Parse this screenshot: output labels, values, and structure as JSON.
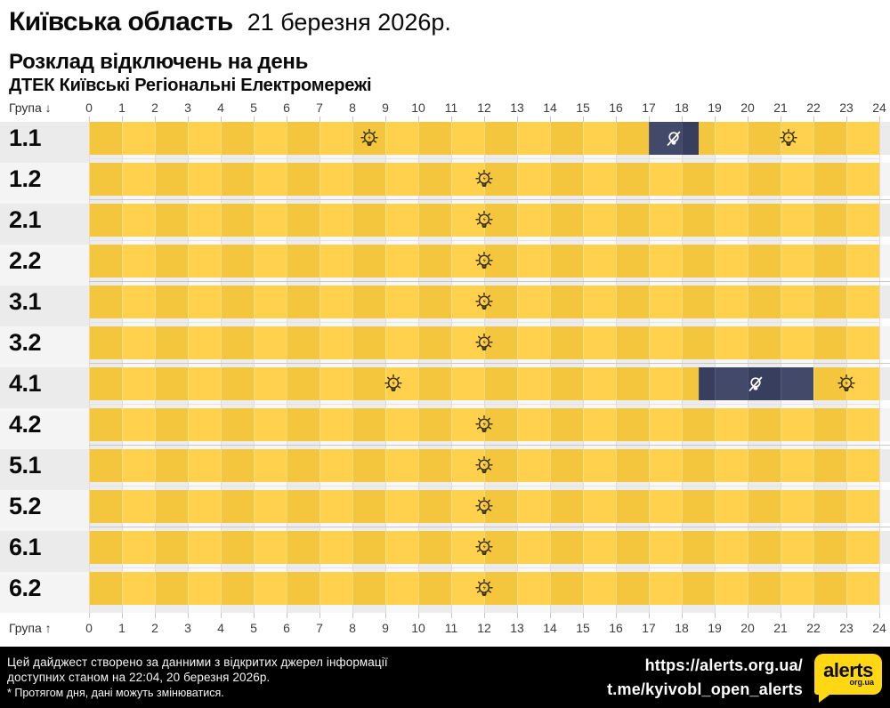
{
  "header": {
    "title": "Київська область",
    "date": "21 березня 2026р.",
    "subtitle": "Розклад відключень на день",
    "provider": "ДТЕК Київські Регіональні Електромережі"
  },
  "chart": {
    "axis_label_top": "Група ↓",
    "axis_label_bottom": "Група ↑"
  },
  "chart_data": {
    "type": "gantt",
    "description": "Daily electricity outage schedule per group; yellow = power on (bulb marker at center of on-period), dark navy = scheduled outage (crossed-out bulb marker)",
    "x_axis": {
      "label": "hour of day",
      "min": 0,
      "max": 24,
      "tick_step": 1
    },
    "groups": [
      {
        "label": "1.1",
        "outages": [
          {
            "start": 17,
            "end": 18.5
          }
        ],
        "on_markers": [
          8.5,
          21.25
        ]
      },
      {
        "label": "1.2",
        "outages": [],
        "on_markers": [
          12
        ]
      },
      {
        "label": "2.1",
        "outages": [],
        "on_markers": [
          12
        ]
      },
      {
        "label": "2.2",
        "outages": [],
        "on_markers": [
          12
        ]
      },
      {
        "label": "3.1",
        "outages": [],
        "on_markers": [
          12
        ]
      },
      {
        "label": "3.2",
        "outages": [],
        "on_markers": [
          12
        ]
      },
      {
        "label": "4.1",
        "outages": [
          {
            "start": 18.5,
            "end": 22
          }
        ],
        "on_markers": [
          9.25,
          23
        ]
      },
      {
        "label": "4.2",
        "outages": [],
        "on_markers": [
          12
        ]
      },
      {
        "label": "5.1",
        "outages": [],
        "on_markers": [
          12
        ]
      },
      {
        "label": "5.2",
        "outages": [],
        "on_markers": [
          12
        ]
      },
      {
        "label": "6.1",
        "outages": [],
        "on_markers": [
          12
        ]
      },
      {
        "label": "6.2",
        "outages": [],
        "on_markers": [
          12
        ]
      }
    ],
    "colors": {
      "power_on_even_hour": "#F3C63D",
      "power_on_odd_hour": "#FFD14D",
      "outage_even_hour": "#383E5E",
      "outage_odd_hour": "#424969",
      "logo_yellow": "#FFD713"
    },
    "legend_position": "none",
    "grid": true
  },
  "footer": {
    "line1": "Цей дайджест створено за данними з відкритих джерел інформації",
    "line2": "доступних станом на 22:04, 20 березня 2026р.",
    "line3": "* Протягом дня, дані можуть змінюватися.",
    "link1": "https://alerts.org.ua/",
    "link2": "t.me/kyivobl_open_alerts",
    "logo_text": "alerts",
    "logo_sub": "org.ua"
  }
}
